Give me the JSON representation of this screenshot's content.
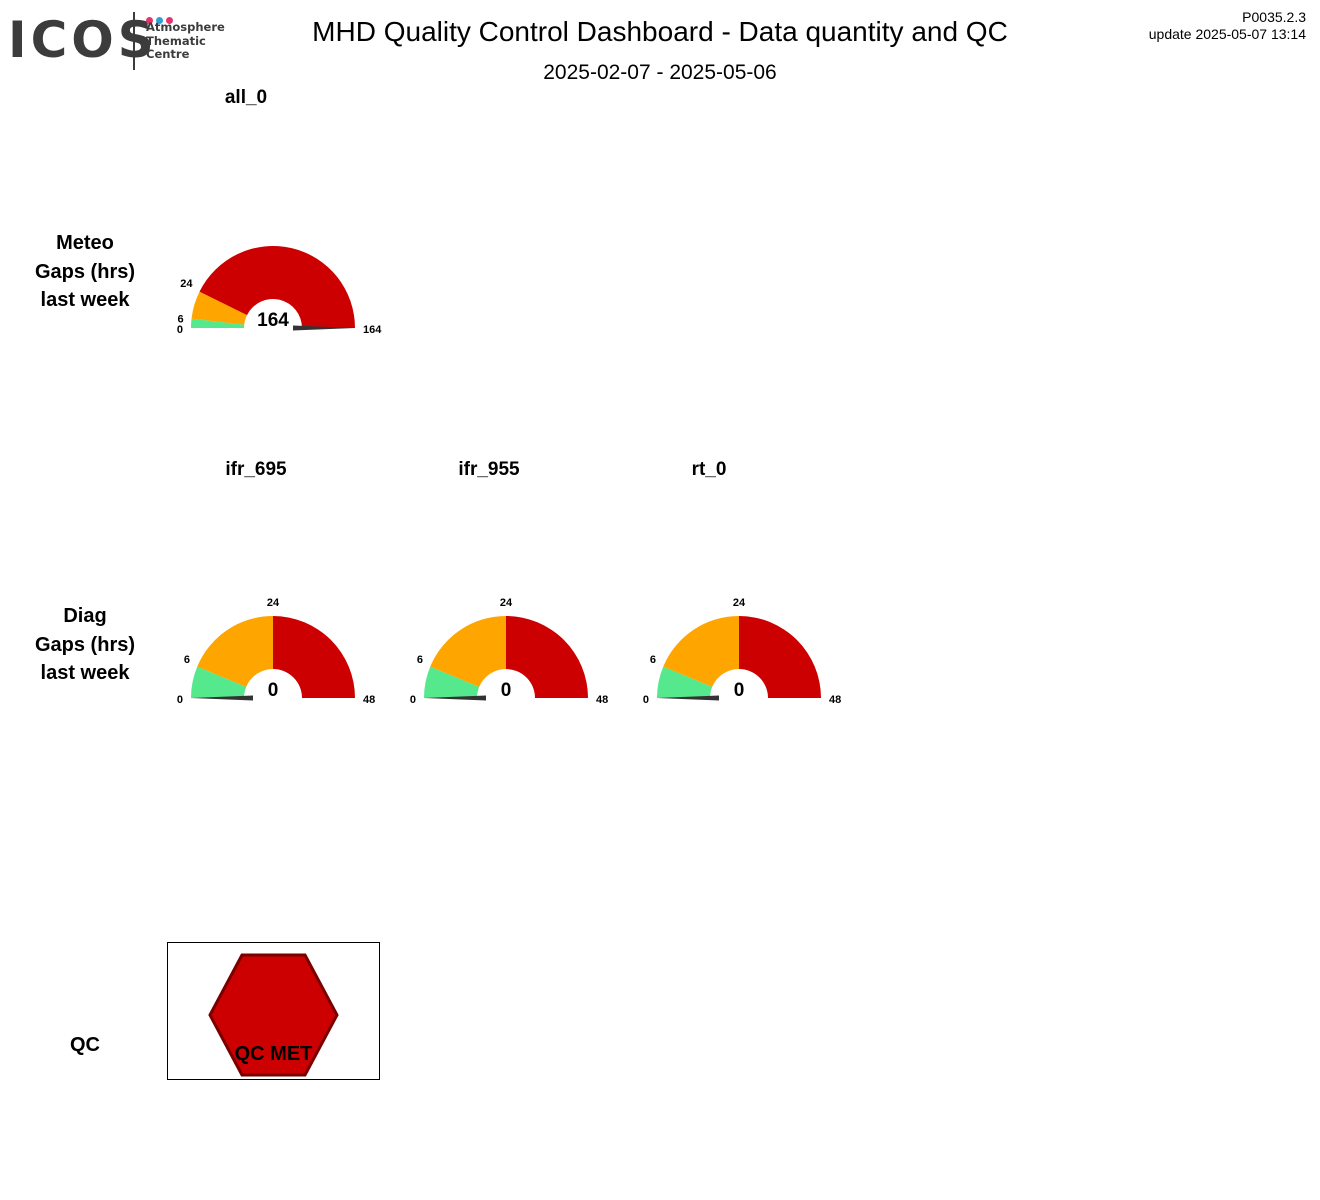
{
  "header": {
    "logo_text": "ICOS",
    "logo_sub": [
      "Atmosphere",
      "Thematic",
      "Centre"
    ],
    "title": "MHD  Quality Control Dashboard - Data quantity and QC",
    "period": "2025-02-07 - 2025-05-06",
    "version": "P0035.2.3",
    "update": "update  2025-05-07 13:14"
  },
  "rows": {
    "meteo_label": [
      "Meteo",
      "Gaps (hrs)",
      "last week"
    ],
    "diag_label": [
      "Diag",
      "Gaps (hrs)",
      "last week"
    ],
    "qc_label": "QC"
  },
  "chart_data": [
    {
      "type": "gauge",
      "title": "all_0",
      "value": 164,
      "max": 164,
      "ticks": [
        0,
        6,
        24,
        164
      ],
      "bands": [
        {
          "from": 0,
          "to": 6,
          "color": "#55e88c"
        },
        {
          "from": 6,
          "to": 24,
          "color": "#ffa500"
        },
        {
          "from": 24,
          "to": 164,
          "color": "#cc0000"
        }
      ]
    },
    {
      "type": "gauge",
      "title": "ifr_695",
      "value": 0,
      "max": 48,
      "ticks": [
        0,
        6,
        24,
        48
      ],
      "bands": [
        {
          "from": 0,
          "to": 6,
          "color": "#55e88c"
        },
        {
          "from": 6,
          "to": 24,
          "color": "#ffa500"
        },
        {
          "from": 24,
          "to": 48,
          "color": "#cc0000"
        }
      ]
    },
    {
      "type": "gauge",
      "title": "ifr_955",
      "value": 0,
      "max": 48,
      "ticks": [
        0,
        6,
        24,
        48
      ],
      "bands": [
        {
          "from": 0,
          "to": 6,
          "color": "#55e88c"
        },
        {
          "from": 6,
          "to": 24,
          "color": "#ffa500"
        },
        {
          "from": 24,
          "to": 48,
          "color": "#cc0000"
        }
      ]
    },
    {
      "type": "gauge",
      "title": "rt_0",
      "value": 0,
      "max": 48,
      "ticks": [
        0,
        6,
        24,
        48
      ],
      "bands": [
        {
          "from": 0,
          "to": 6,
          "color": "#55e88c"
        },
        {
          "from": 6,
          "to": 24,
          "color": "#ffa500"
        },
        {
          "from": 24,
          "to": 48,
          "color": "#cc0000"
        }
      ]
    }
  ],
  "qc": {
    "label": "QC MET",
    "status_color": "#cc0000"
  },
  "colors": {
    "logo_dots": [
      "#e6336f",
      "#2f9fd8",
      "#e6336f"
    ],
    "needle": "#333333"
  }
}
